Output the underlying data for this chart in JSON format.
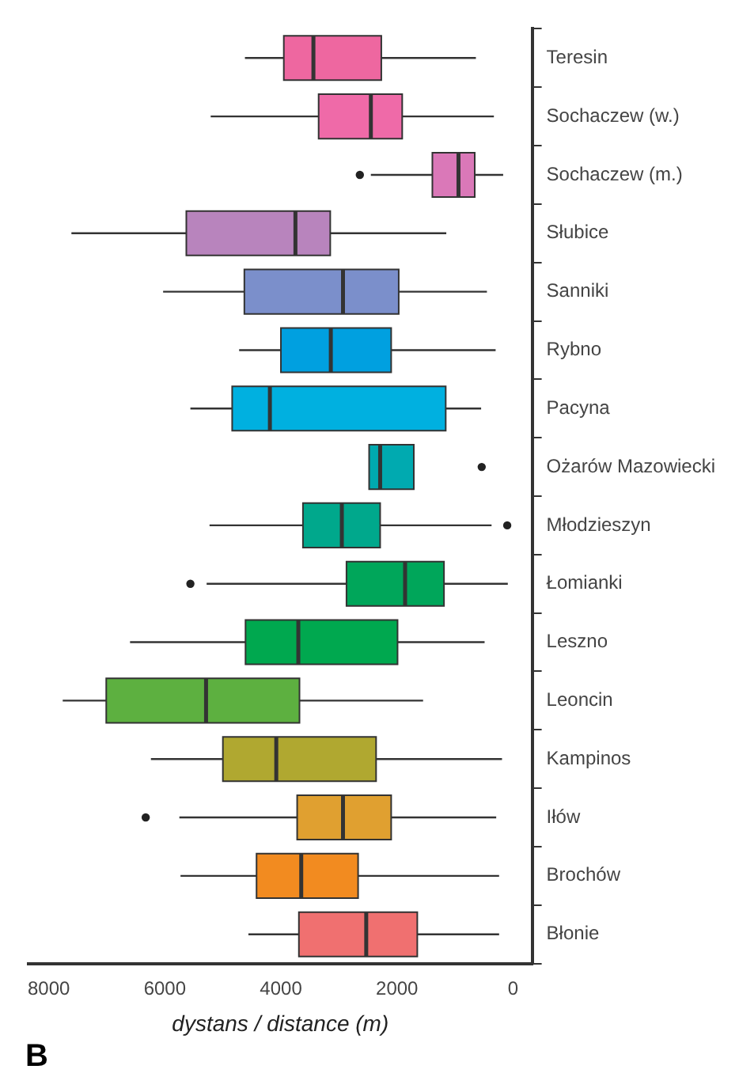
{
  "chart_data": {
    "type": "box",
    "orientation": "horizontal",
    "xlabel": "dystans / distance (m)",
    "annotations": [
      "B"
    ],
    "categories": [
      "Teresin",
      "Sochaczew (w.)",
      "Sochaczew (m.)",
      "Słubice",
      "Sanniki",
      "Rybno",
      "Pacyna",
      "Ożarów Mazowiecki",
      "Młodzieszyn",
      "Łomianki",
      "Leszno",
      "Leoncin",
      "Kampinos",
      "Iłów",
      "Brochów",
      "Błonie"
    ],
    "boxes": [
      {
        "low": 640,
        "q1": 2270,
        "median": 3440,
        "q3": 3950,
        "high": 4620
      },
      {
        "low": 330,
        "q1": 1910,
        "median": 2450,
        "q3": 3350,
        "high": 5210
      },
      {
        "low": 170,
        "q1": 660,
        "median": 940,
        "q3": 1390,
        "high": 2450,
        "outliers": [
          2640
        ]
      },
      {
        "low": 1150,
        "q1": 3150,
        "median": 3750,
        "q3": 5630,
        "high": 7610
      },
      {
        "low": 450,
        "q1": 1970,
        "median": 2930,
        "q3": 4630,
        "high": 6030
      },
      {
        "low": 300,
        "q1": 2100,
        "median": 3140,
        "q3": 4000,
        "high": 4720
      },
      {
        "low": 550,
        "q1": 1160,
        "median": 4190,
        "q3": 4840,
        "high": 5560
      },
      {
        "low": 1710,
        "q1": 1710,
        "median": 2290,
        "q3": 2480,
        "high": 2480,
        "outliers": [
          540
        ]
      },
      {
        "low": 370,
        "q1": 2290,
        "median": 2950,
        "q3": 3620,
        "high": 5230,
        "outliers": [
          100
        ]
      },
      {
        "low": 90,
        "q1": 1190,
        "median": 1860,
        "q3": 2870,
        "high": 5280,
        "outliers": [
          5560
        ]
      },
      {
        "low": 490,
        "q1": 1990,
        "median": 3700,
        "q3": 4610,
        "high": 6600
      },
      {
        "low": 1550,
        "q1": 3680,
        "median": 5290,
        "q3": 7010,
        "high": 7760
      },
      {
        "low": 190,
        "q1": 2360,
        "median": 4080,
        "q3": 5000,
        "high": 6240
      },
      {
        "low": 290,
        "q1": 2100,
        "median": 2930,
        "q3": 3720,
        "high": 5750,
        "outliers": [
          6330
        ]
      },
      {
        "low": 240,
        "q1": 2670,
        "median": 3650,
        "q3": 4420,
        "high": 5730
      },
      {
        "low": 240,
        "q1": 1650,
        "median": 2530,
        "q3": 3690,
        "high": 4560
      }
    ],
    "colors": [
      "#ee67a0",
      "#ef6aa8",
      "#da78b8",
      "#b884bd",
      "#7b8fcb",
      "#00a0e0",
      "#00b0e0",
      "#00aab0",
      "#00a88c",
      "#00a65a",
      "#00a84f",
      "#5db040",
      "#b0a830",
      "#e0a030",
      "#f28b20",
      "#f07070"
    ],
    "xlim": [
      8350,
      -330
    ],
    "xticks": [
      8000,
      6000,
      4000,
      2000,
      0
    ],
    "grid": false,
    "legend": false
  }
}
